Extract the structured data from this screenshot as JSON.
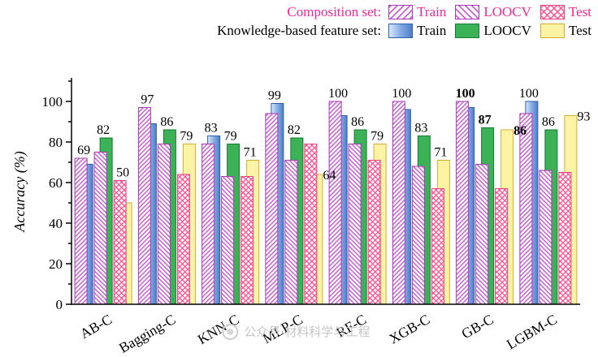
{
  "legend": {
    "composition": {
      "title": "Composition set:",
      "items": [
        {
          "label": "Train",
          "style": "hatch-up"
        },
        {
          "label": "LOOCV",
          "style": "hatch-down"
        },
        {
          "label": "Test",
          "style": "crosshatch"
        }
      ]
    },
    "knowledge": {
      "title": "Knowledge-based feature set:",
      "items": [
        {
          "label": "Train",
          "style": "blue"
        },
        {
          "label": "LOOCV",
          "style": "green"
        },
        {
          "label": "Test",
          "style": "yellow"
        }
      ]
    }
  },
  "chart_data": {
    "type": "bar",
    "ylabel": "Accuracy (%)",
    "ylim": [
      0,
      112
    ],
    "yticks": [
      0,
      20,
      40,
      60,
      80,
      100
    ],
    "grid": false,
    "legend_position": "top-right",
    "categories": [
      "AB-C",
      "Bagging-C",
      "KNN-C",
      "MLP-C",
      "RF-C",
      "XGB-C",
      "GB-C",
      "LGBM-C"
    ],
    "series": [
      {
        "key": "comp_train",
        "name": "Composition set Train",
        "values": [
          72,
          97,
          79,
          94,
          100,
          100,
          100,
          94
        ]
      },
      {
        "key": "kb_train",
        "name": "Knowledge-based feature set Train",
        "values": [
          69,
          89,
          83,
          99,
          93,
          96,
          97,
          100
        ]
      },
      {
        "key": "comp_loocv",
        "name": "Composition set LOOCV",
        "values": [
          75,
          79,
          63,
          71,
          79,
          68,
          69,
          66
        ]
      },
      {
        "key": "kb_loocv",
        "name": "Knowledge-based feature set LOOCV",
        "values": [
          82,
          86,
          79,
          82,
          86,
          83,
          87,
          86
        ]
      },
      {
        "key": "comp_test",
        "name": "Composition set Test",
        "values": [
          61,
          64,
          63,
          79,
          71,
          57,
          57,
          65
        ]
      },
      {
        "key": "kb_test",
        "name": "Knowledge-based feature set Test",
        "values": [
          50,
          79,
          71,
          64,
          79,
          71,
          86,
          93
        ]
      }
    ],
    "bar_labels": [
      {
        "category": "AB-C",
        "labels": [
          {
            "pair": "train",
            "text": "69",
            "pos": "top"
          },
          {
            "pair": "loocv",
            "text": "82",
            "pos": "top"
          },
          {
            "pair": "test",
            "text": "50",
            "pos": "top"
          }
        ]
      },
      {
        "category": "Bagging-C",
        "labels": [
          {
            "pair": "train",
            "text": "97",
            "pos": "top"
          },
          {
            "pair": "loocv",
            "text": "86",
            "pos": "top"
          },
          {
            "pair": "test",
            "text": "79",
            "pos": "top"
          }
        ]
      },
      {
        "category": "KNN-C",
        "labels": [
          {
            "pair": "train",
            "text": "83",
            "pos": "top"
          },
          {
            "pair": "loocv",
            "text": "79",
            "pos": "top"
          },
          {
            "pair": "test",
            "text": "71",
            "pos": "top"
          }
        ]
      },
      {
        "category": "MLP-C",
        "labels": [
          {
            "pair": "train",
            "text": "99",
            "pos": "top"
          },
          {
            "pair": "loocv",
            "text": "82",
            "pos": "top"
          },
          {
            "pair": "test",
            "text": "64",
            "pos": "right"
          }
        ]
      },
      {
        "category": "RF-C",
        "labels": [
          {
            "pair": "train",
            "text": "100",
            "pos": "top"
          },
          {
            "pair": "loocv",
            "text": "86",
            "pos": "top"
          },
          {
            "pair": "test",
            "text": "79",
            "pos": "top"
          }
        ]
      },
      {
        "category": "XGB-C",
        "labels": [
          {
            "pair": "train",
            "text": "100",
            "pos": "top"
          },
          {
            "pair": "loocv",
            "text": "83",
            "pos": "top"
          },
          {
            "pair": "test",
            "text": "71",
            "pos": "top"
          }
        ]
      },
      {
        "category": "GB-C",
        "color": "#E8000D",
        "labels": [
          {
            "pair": "train",
            "text": "100",
            "pos": "top"
          },
          {
            "pair": "loocv",
            "text": "87",
            "pos": "top"
          },
          {
            "pair": "test",
            "text": "86",
            "pos": "right"
          }
        ]
      },
      {
        "category": "LGBM-C",
        "labels": [
          {
            "pair": "train",
            "text": "100",
            "pos": "top"
          },
          {
            "pair": "loocv",
            "text": "86",
            "pos": "top"
          },
          {
            "pair": "test",
            "text": "93",
            "pos": "right"
          }
        ]
      }
    ]
  },
  "colors": {
    "composition_hatch": "#C253CE",
    "composition_hatch_border": "#A838B8",
    "composition_cross": "#FF4F8E",
    "composition_cross_border": "#E8427E",
    "knowledge_train_gradient": [
      "#DCEAFB",
      "#86ACE6",
      "#4F7EC6"
    ],
    "knowledge_train_border": "#2F5FA8",
    "knowledge_loocv_fill": "#3CB257",
    "knowledge_loocv_border": "#157A33",
    "knowledge_test_fill": "#FDF3A4",
    "knowledge_test_border": "#D2AE35",
    "composition_text": "#F1269B",
    "highlight_text": "#E8000D",
    "axis": "#000000",
    "watermark": "#C6C6C6"
  },
  "watermark": {
    "text": "公众号·材料科学与工程"
  }
}
